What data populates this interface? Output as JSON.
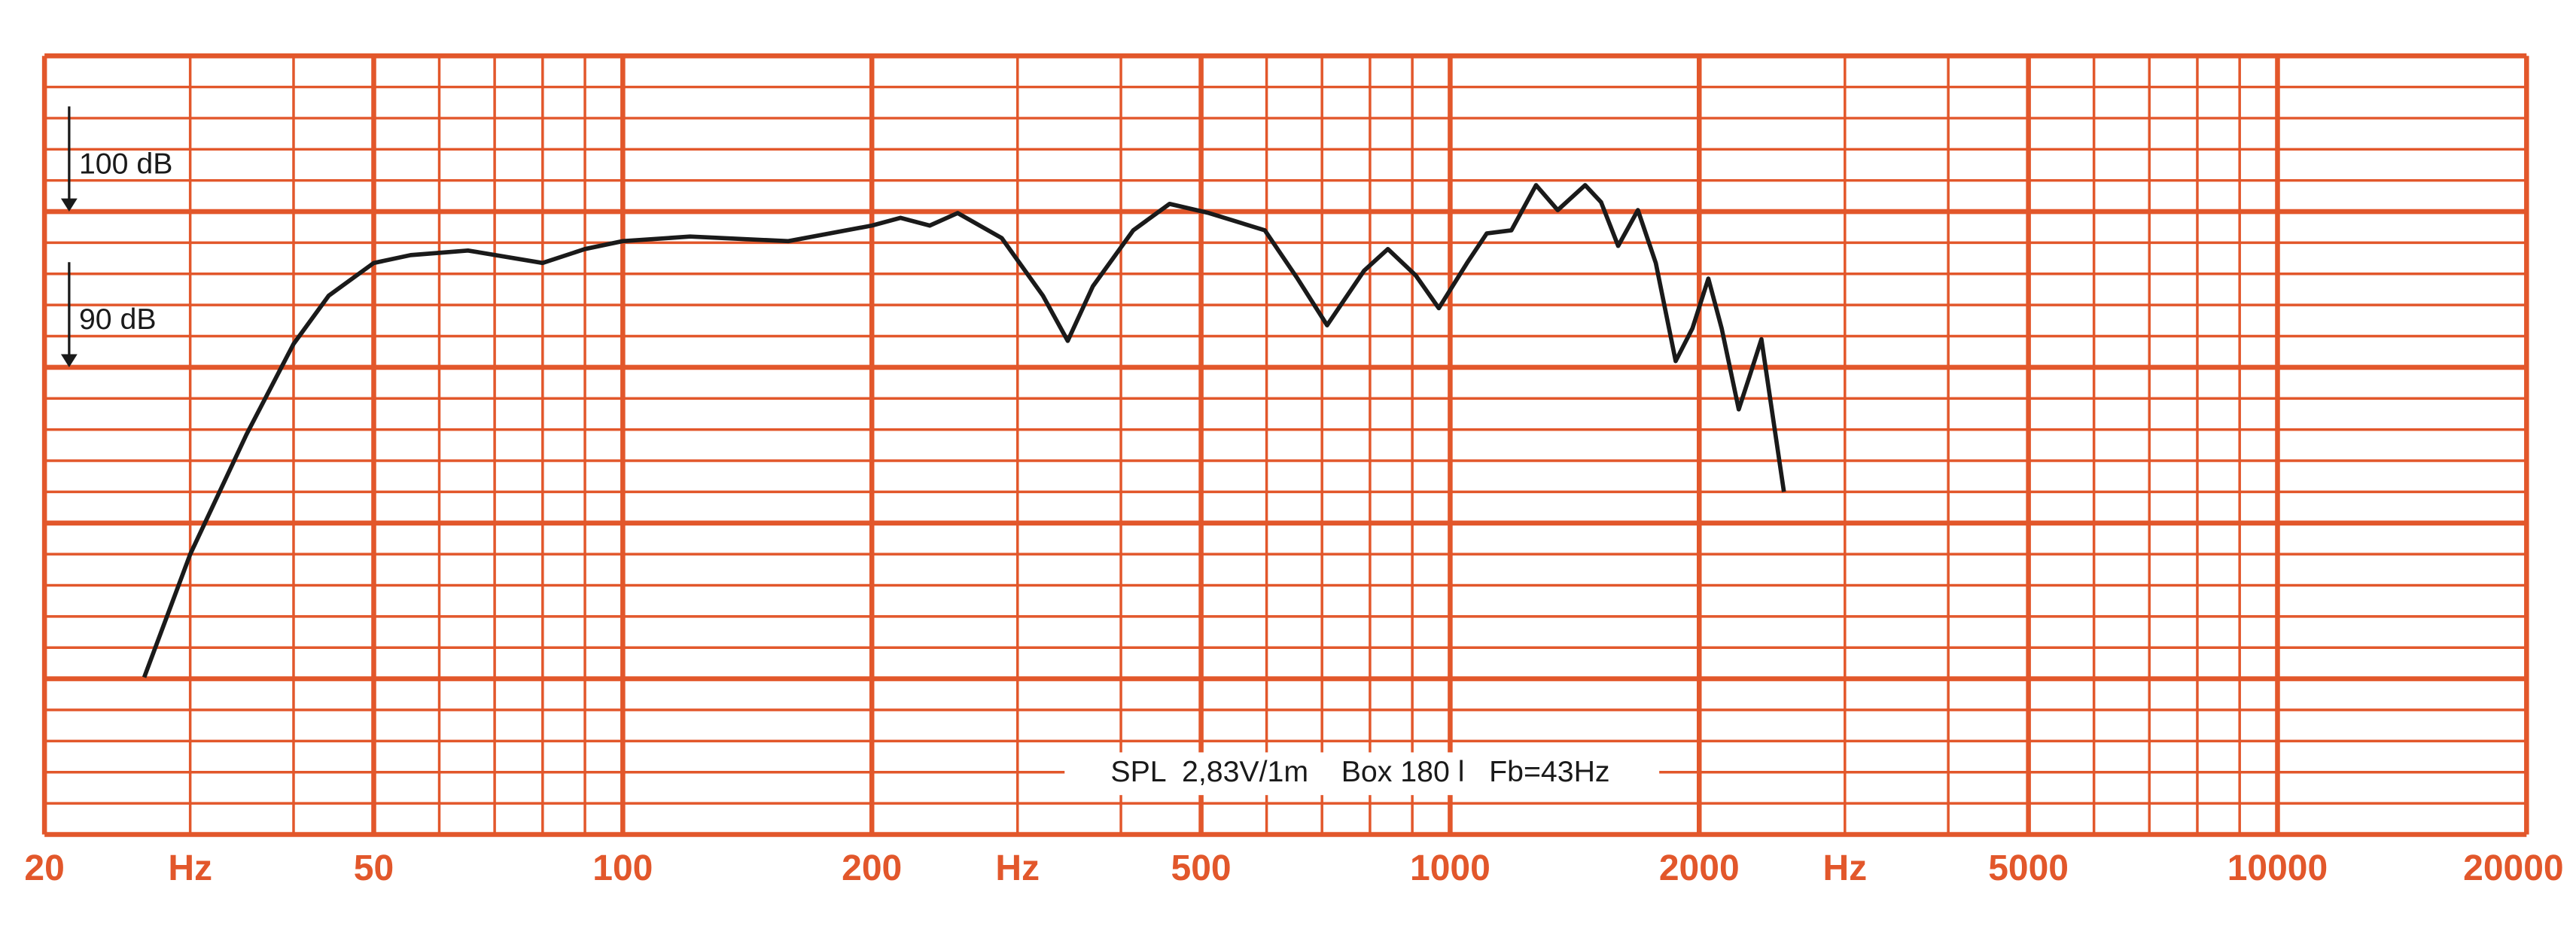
{
  "chart_data": {
    "type": "line",
    "log_x": true,
    "grid": true,
    "grid_color": "#e2572b",
    "xlim": [
      20,
      20000
    ],
    "ylim": [
      60,
      110
    ],
    "xticks": [
      20,
      {
        "value": 30,
        "label": "Hz"
      },
      50,
      100,
      200,
      {
        "value": 300,
        "label": "Hz"
      },
      500,
      1000,
      2000,
      {
        "value": 3000,
        "label": "Hz"
      },
      5000,
      10000,
      20000
    ],
    "xgrid_minor": [
      40,
      60,
      70,
      80,
      90,
      400,
      600,
      700,
      800,
      900,
      4000,
      6000,
      7000,
      8000,
      9000
    ],
    "yticks": [
      60,
      70,
      80,
      90,
      100,
      110
    ],
    "ygrid_minor": [
      62,
      64,
      66,
      68,
      72,
      74,
      76,
      78,
      82,
      84,
      86,
      88,
      92,
      94,
      96,
      98,
      102,
      104,
      106,
      108
    ],
    "annotations": [
      {
        "text": "100 dB",
        "y": 100
      },
      {
        "text": "90 dB",
        "y": 90
      }
    ],
    "note": "SPL  2,83V/1m    Box 180 l   Fb=43Hz",
    "x": [
      26.4,
      30,
      35.1,
      40,
      44.1,
      50,
      55.4,
      65,
      80,
      90,
      100,
      120.6,
      158.5,
      200,
      216.6,
      235,
      254,
      287,
      322,
      345,
      370,
      414,
      458,
      511,
      597,
      654,
      710,
      787,
      841,
      909,
      969,
      1048,
      1107,
      1186,
      1270,
      1349,
      1456,
      1522,
      1596,
      1686,
      1772,
      1873,
      1963,
      2052,
      2129,
      2233,
      2300,
      2378,
      2532
    ],
    "series": [
      {
        "color": "#1a1a1a",
        "values": [
          70.1,
          78.0,
          85.7,
          91.5,
          94.6,
          96.7,
          97.2,
          97.5,
          96.7,
          97.6,
          98.1,
          98.4,
          98.1,
          99.1,
          99.6,
          99.1,
          99.9,
          98.3,
          94.6,
          91.7,
          95.2,
          98.8,
          100.5,
          99.9,
          98.8,
          95.7,
          92.7,
          96.2,
          97.6,
          95.9,
          93.8,
          96.7,
          98.6,
          98.8,
          101.7,
          100.1,
          101.7,
          100.6,
          97.8,
          100.1,
          96.7,
          90.4,
          92.5,
          95.7,
          92.5,
          87.3,
          89.4,
          91.8,
          82.0
        ]
      }
    ]
  }
}
